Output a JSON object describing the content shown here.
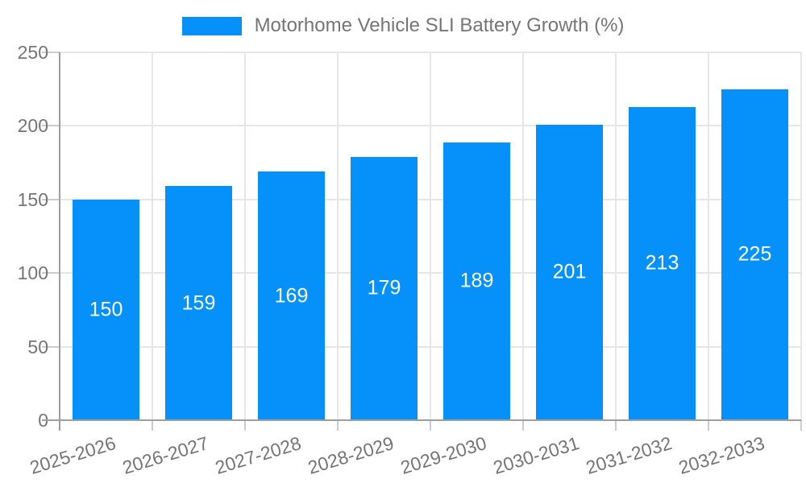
{
  "chart_data": {
    "type": "bar",
    "title": "",
    "legend_label": "Motorhome Vehicle SLI Battery Growth (%)",
    "legend_position": "top",
    "categories": [
      "2025-2026",
      "2026-2027",
      "2027-2028",
      "2028-2029",
      "2029-2030",
      "2030-2031",
      "2031-2032",
      "2032-2033"
    ],
    "values": [
      150,
      159,
      169,
      179,
      189,
      201,
      213,
      225
    ],
    "xlabel": "",
    "ylabel": "",
    "ylim": [
      0,
      250
    ],
    "yticks": [
      0,
      50,
      100,
      150,
      200,
      250
    ],
    "grid": true
  },
  "colors": {
    "bar": "#0691fa",
    "axis_text": "#757575",
    "axis_line": "#9e9e9e",
    "gridline": "#e6e6e6",
    "tick": "#cccccc",
    "data_label": "#ffffff",
    "background": "#ffffff"
  }
}
